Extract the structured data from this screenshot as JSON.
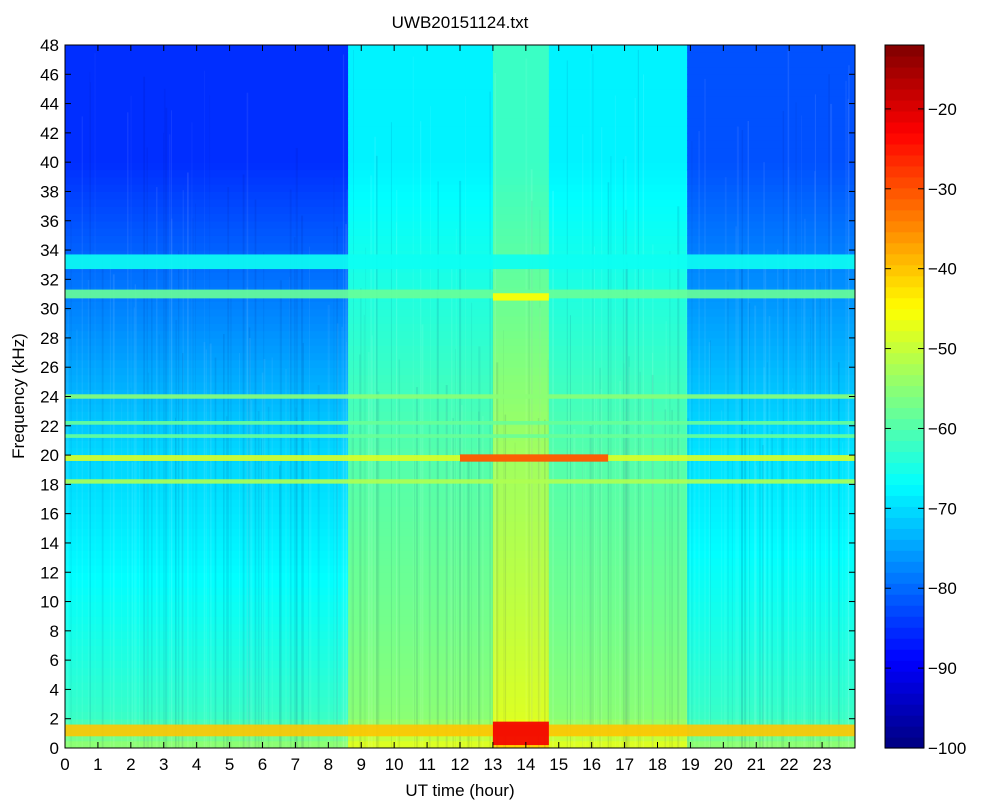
{
  "chart_data": {
    "type": "heatmap",
    "title": "UWB20151124.txt",
    "xlabel": "UT time (hour)",
    "ylabel": "Frequency (kHz)",
    "xlim": [
      0,
      24
    ],
    "ylim": [
      0,
      48
    ],
    "x_ticks": [
      0,
      1,
      2,
      3,
      4,
      5,
      6,
      7,
      8,
      9,
      10,
      11,
      12,
      13,
      14,
      15,
      16,
      17,
      18,
      19,
      20,
      21,
      22,
      23
    ],
    "y_ticks": [
      0,
      2,
      4,
      6,
      8,
      10,
      12,
      14,
      16,
      18,
      20,
      22,
      24,
      26,
      28,
      30,
      32,
      34,
      36,
      38,
      40,
      42,
      44,
      46,
      48
    ],
    "colorbar": {
      "colormap": "jet",
      "range": [
        -100,
        -12
      ],
      "ticks": [
        -20,
        -30,
        -40,
        -50,
        -60,
        -70,
        -80,
        -90,
        -100
      ]
    },
    "regimes": [
      {
        "x": [
          0,
          8.6
        ],
        "high_freq_level": -85,
        "low_freq_level": -62
      },
      {
        "x": [
          8.6,
          13.0
        ],
        "high_freq_level": -68,
        "low_freq_level": -55
      },
      {
        "x": [
          13.0,
          14.7
        ],
        "high_freq_level": -62,
        "low_freq_level": -48
      },
      {
        "x": [
          14.7,
          18.9
        ],
        "high_freq_level": -68,
        "low_freq_level": -55
      },
      {
        "x": [
          18.9,
          24
        ],
        "high_freq_level": -82,
        "low_freq_level": -62
      }
    ],
    "bands": [
      {
        "freq_khz": 19.8,
        "width_khz": 0.4,
        "level": -48
      },
      {
        "freq_khz": 18.2,
        "width_khz": 0.3,
        "level": -52
      },
      {
        "freq_khz": 24.0,
        "width_khz": 0.3,
        "level": -55
      },
      {
        "freq_khz": 22.2,
        "width_khz": 0.25,
        "level": -58
      },
      {
        "freq_khz": 21.3,
        "width_khz": 0.25,
        "level": -58
      },
      {
        "freq_khz": 31.0,
        "width_khz": 0.6,
        "level": -58
      },
      {
        "freq_khz": 33.2,
        "width_khz": 1.0,
        "level": -66
      },
      {
        "freq_khz": 1.2,
        "width_khz": 0.8,
        "level": -40
      }
    ],
    "features": [
      {
        "x": [
          13.0,
          14.7
        ],
        "freq_khz": 30.8,
        "level": -45
      },
      {
        "x": [
          12.0,
          16.5
        ],
        "freq_khz": 19.8,
        "level": -30
      },
      {
        "x": [
          13.0,
          14.7
        ],
        "freq_khz": 1.0,
        "level": -22
      }
    ]
  }
}
